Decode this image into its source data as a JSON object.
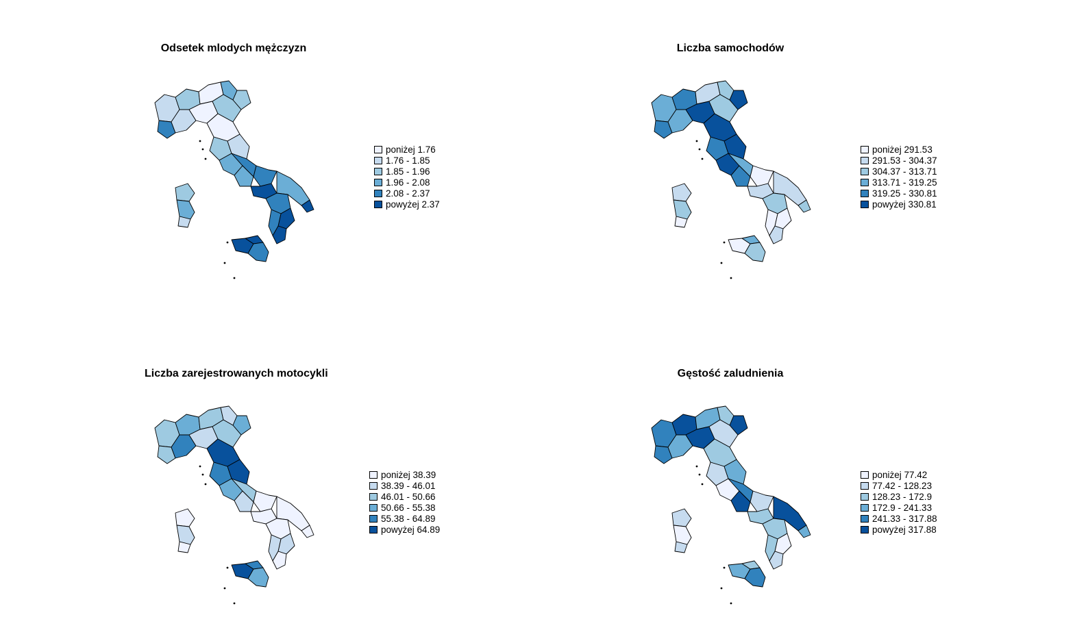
{
  "palette": [
    "#EFF3FF",
    "#C6DBEF",
    "#9ECAE1",
    "#6BAED6",
    "#3182BD",
    "#08519C"
  ],
  "maps": [
    {
      "title": "Odsetek mlodych mężczyzn",
      "legend": [
        "poniżej 1.76",
        "1.76 - 1.85",
        "1.85 - 1.96",
        "1.96 - 2.08",
        "2.08 - 2.37",
        "powyżej 2.37"
      ],
      "regions": {
        "north": [
          1,
          2,
          0,
          3,
          2,
          4,
          1,
          0,
          2
        ],
        "center": [
          0,
          2,
          1,
          3,
          4,
          3,
          4,
          5
        ],
        "south": [
          3,
          4,
          5,
          5,
          4,
          5
        ],
        "islands": {
          "sardinia": [
            2,
            3,
            1
          ],
          "sicily": [
            5,
            5,
            4
          ]
        }
      }
    },
    {
      "title": "Liczba samochodów",
      "legend": [
        "poniżej 291.53",
        "291.53 - 304.37",
        "304.37 - 313.71",
        "313.71 - 319.25",
        "319.25 - 330.81",
        "powyżej 330.81"
      ],
      "regions": {
        "north": [
          3,
          4,
          1,
          2,
          5,
          4,
          3,
          5,
          2
        ],
        "center": [
          5,
          4,
          5,
          5,
          3,
          4,
          0,
          1
        ],
        "south": [
          1,
          2,
          0,
          1,
          0,
          2
        ],
        "islands": {
          "sardinia": [
            1,
            2,
            0
          ],
          "sicily": [
            0,
            3,
            2
          ]
        }
      }
    },
    {
      "title": "Liczba zarejestrowanych motocykli",
      "legend": [
        "poniżej 38.39",
        "38.39 - 46.01",
        "46.01 - 50.66",
        "50.66 - 55.38",
        "55.38 - 64.89",
        "powyżej 64.89"
      ],
      "regions": {
        "north": [
          2,
          3,
          2,
          1,
          3,
          2,
          4,
          1,
          2
        ],
        "center": [
          5,
          4,
          5,
          3,
          2,
          1,
          0,
          0
        ],
        "south": [
          0,
          0,
          1,
          0,
          1,
          0
        ],
        "islands": {
          "sardinia": [
            0,
            1,
            0
          ],
          "sicily": [
            5,
            4,
            3
          ]
        }
      }
    },
    {
      "title": "Gęstość zaludnienia",
      "legend": [
        "poniżej 77.42",
        "77.42 - 128.23",
        "128.23 - 172.9",
        "172.9 - 241.33",
        "241.33 - 317.88",
        "powyżej 317.88"
      ],
      "regions": {
        "north": [
          4,
          5,
          3,
          2,
          5,
          4,
          3,
          5,
          1
        ],
        "center": [
          2,
          1,
          3,
          0,
          4,
          5,
          1,
          2
        ],
        "south": [
          5,
          2,
          0,
          1,
          2,
          3
        ],
        "islands": {
          "sardinia": [
            1,
            0,
            1
          ],
          "sicily": [
            3,
            2,
            4
          ]
        }
      }
    }
  ]
}
